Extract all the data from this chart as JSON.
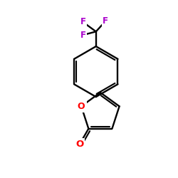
{
  "bg_color": "#ffffff",
  "bond_color": "#000000",
  "oxygen_color": "#ff0000",
  "fluorine_color": "#aa00cc",
  "figsize": [
    2.5,
    2.5
  ],
  "dpi": 100,
  "cf3_label": "F",
  "oxygen_label": "O",
  "aldehyde_oxygen_label": "O",
  "lw": 1.7
}
